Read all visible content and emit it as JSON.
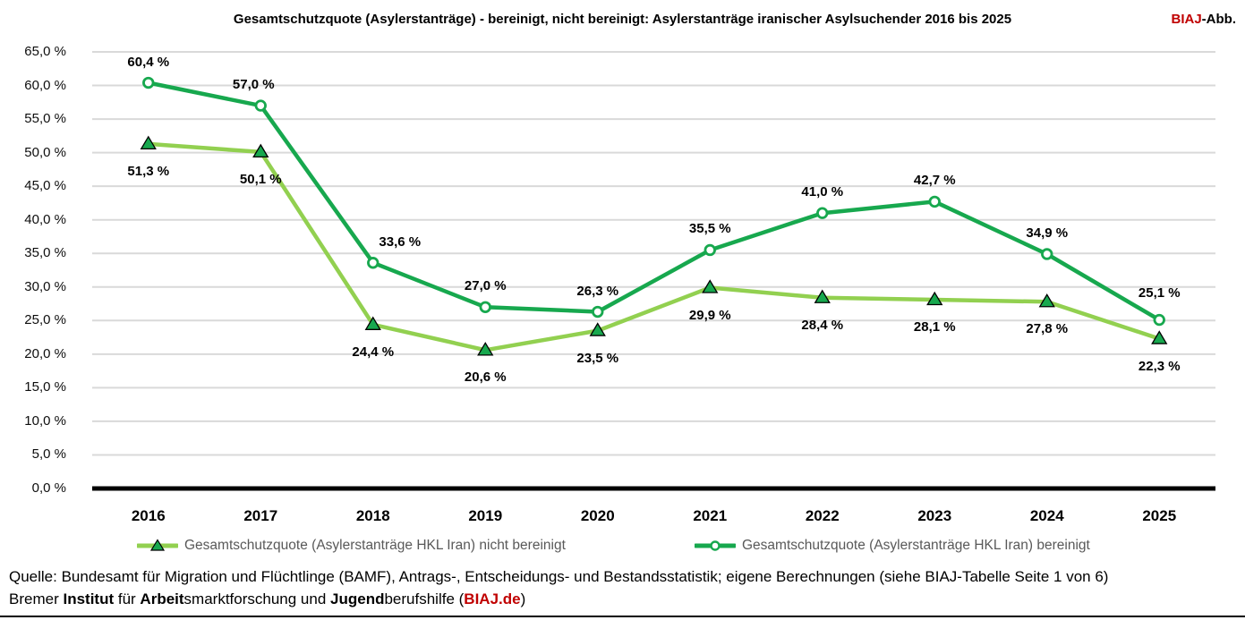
{
  "header": {
    "brand_red": "BIAJ",
    "brand_suffix": "-Abb."
  },
  "chart_data": {
    "type": "line",
    "title": "Gesamtschutzquote (Asylerstanträge) - bereinigt, nicht bereinigt: Asylerstanträge iranischer Asylsuchender 2016 bis 2025",
    "categories": [
      "2016",
      "2017",
      "2018",
      "2019",
      "2020",
      "2021",
      "2022",
      "2023",
      "2024",
      "2025"
    ],
    "y_axis": {
      "min": 0,
      "max": 65,
      "step": 5,
      "tick_suffix": " %",
      "decimal_separator": ","
    },
    "grid": true,
    "grid_color": "#d9d9d9",
    "axis_color": "#000000",
    "legend_position": "bottom",
    "value_label_suffix": " %",
    "series": [
      {
        "name": "Gesamtschutzquote (Asylerstanträge HKL Iran) nicht bereinigt",
        "marker": "triangle",
        "line_color": "#92d050",
        "marker_fill": "#17a84e",
        "marker_stroke": "#000000",
        "label_position": "below",
        "values": [
          51.3,
          50.1,
          24.4,
          20.6,
          23.5,
          29.9,
          28.4,
          28.1,
          27.8,
          22.3
        ]
      },
      {
        "name": "Gesamtschutzquote (Asylerstanträge HKL Iran) bereinigt",
        "marker": "circle",
        "line_color": "#17a84e",
        "marker_fill": "#ffffff",
        "marker_stroke": "#17a84e",
        "label_position": "above",
        "values": [
          60.4,
          57.0,
          33.6,
          27.0,
          26.3,
          35.5,
          41.0,
          42.7,
          34.9,
          25.1
        ]
      }
    ]
  },
  "footer": {
    "line1": "Quelle: Bundesamt für Migration und Flüchtlinge (BAMF), Antrags-, Entscheidungs- und Bestandsstatistik; eigene Berechnungen (siehe BIAJ-Tabelle Seite 1 von 6)",
    "line2": {
      "t1": "Bremer ",
      "t2": "Institut",
      "t3": " für ",
      "t4": "Arbeit",
      "t5": "smarktforschung und ",
      "t6": "Jugend",
      "t7": "berufshilfe (",
      "t8": "BIAJ.de",
      "t9": ")"
    }
  }
}
